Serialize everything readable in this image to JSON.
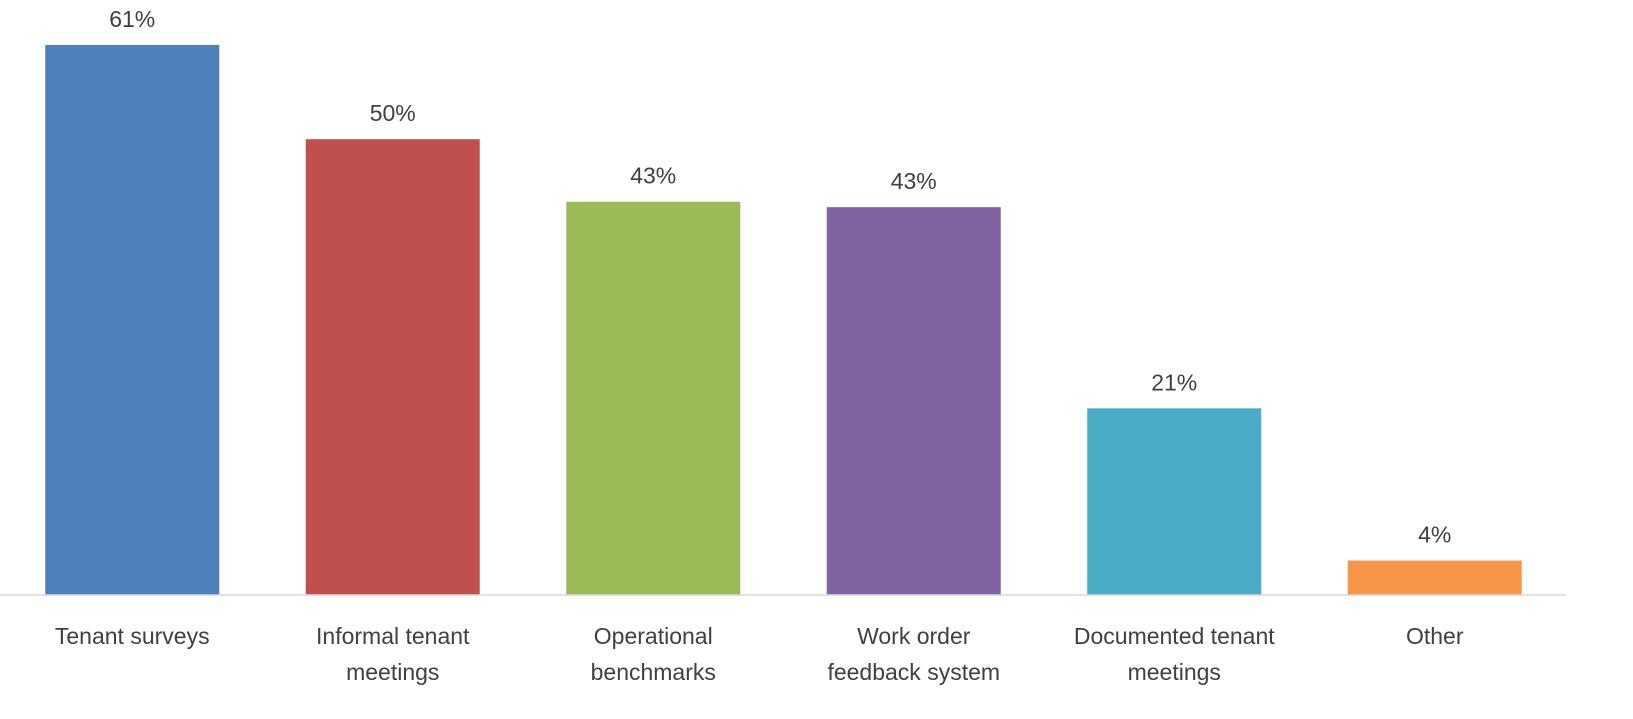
{
  "chart_data": {
    "type": "bar",
    "categories": [
      "Tenant surveys",
      "Informal tenant\nmeetings",
      "Operational\nbenchmarks",
      "Work order\nfeedback system",
      "Documented tenant\nmeetings",
      "Other"
    ],
    "values": [
      60.7,
      50.3,
      43.4,
      42.8,
      20.6,
      3.8
    ],
    "value_labels": [
      "61%",
      "50%",
      "43%",
      "43%",
      "21%",
      "4%"
    ],
    "colors": [
      "#4f81bd",
      "#c0504d",
      "#9bbb59",
      "#8064a2",
      "#4bacc6",
      "#f79646"
    ],
    "ylim": [
      0,
      65
    ]
  }
}
